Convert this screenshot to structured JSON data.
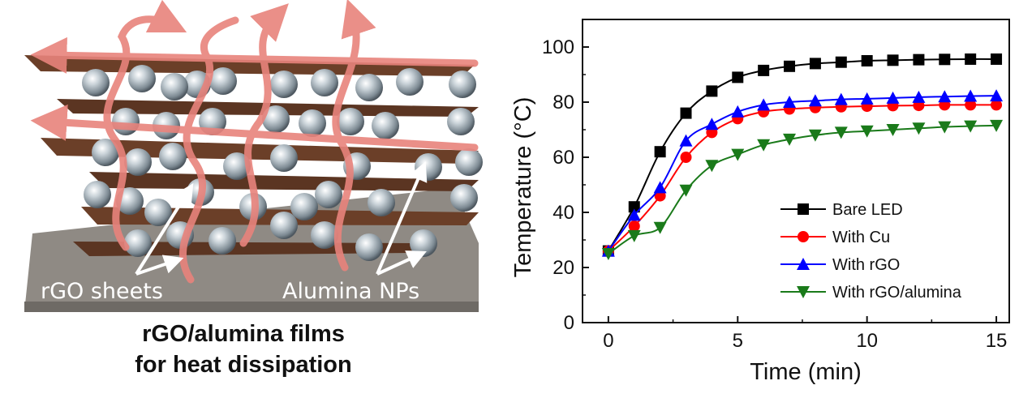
{
  "illustration": {
    "label_sheets": "rGO sheets",
    "label_particles": "Alumina NPs",
    "caption_line1": "rGO/alumina films",
    "caption_line2": "for heat dissipation"
  },
  "chart_data": {
    "type": "line",
    "title": "",
    "xlabel": "Time (min)",
    "ylabel": "Temperature (°C)",
    "xlim": [
      -1,
      15.5
    ],
    "ylim": [
      0,
      110
    ],
    "xticks": [
      0,
      5,
      10,
      15
    ],
    "yticks": [
      0,
      20,
      40,
      60,
      80,
      100
    ],
    "legend_position": "bottom-right",
    "x": [
      0,
      1,
      2,
      3,
      4,
      5,
      6,
      7,
      8,
      9,
      10,
      11,
      12,
      13,
      14,
      15
    ],
    "series": [
      {
        "name": "Bare LED",
        "color": "#000000",
        "marker": "square",
        "values": [
          26,
          42,
          62,
          76,
          84,
          89,
          91.5,
          93,
          94,
          94.5,
          95,
          95.2,
          95.4,
          95.5,
          95.6,
          95.6
        ]
      },
      {
        "name": "With Cu",
        "color": "#ff0000",
        "marker": "circle",
        "values": [
          26,
          35,
          46,
          60,
          69,
          74,
          76.5,
          77.5,
          78,
          78.3,
          78.5,
          78.7,
          78.8,
          79,
          79,
          79
        ]
      },
      {
        "name": "With rGO",
        "color": "#0000ff",
        "marker": "triangle-up",
        "values": [
          26,
          39,
          49,
          66,
          72,
          76.5,
          79,
          80,
          80.5,
          81,
          81.2,
          81.5,
          81.8,
          82,
          82.2,
          82.3
        ]
      },
      {
        "name": "With rGO/alumina",
        "color": "#1a7a1a",
        "marker": "triangle-down",
        "values": [
          25,
          31.5,
          34.5,
          48,
          57,
          61,
          64.5,
          66.5,
          68,
          69,
          69.5,
          70,
          70.5,
          71,
          71.3,
          71.5
        ]
      }
    ]
  }
}
